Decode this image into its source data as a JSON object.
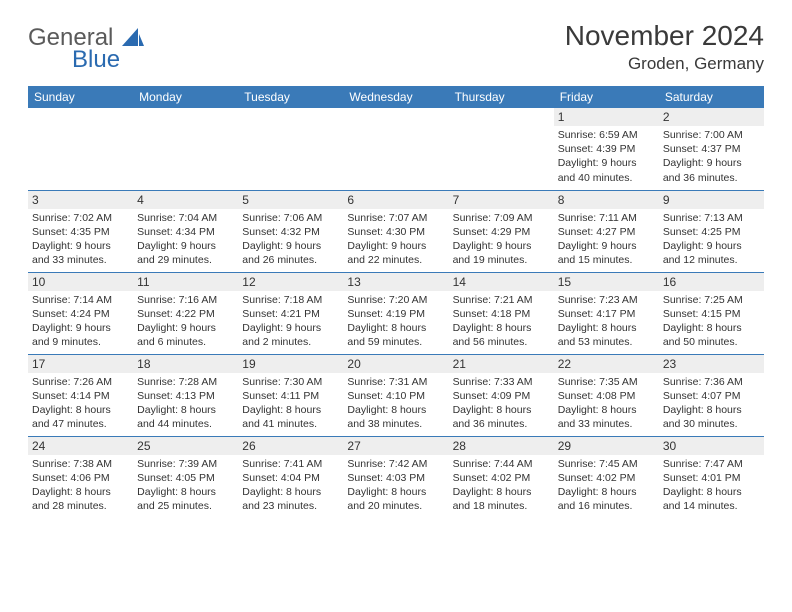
{
  "brand": {
    "part1": "General",
    "part2": "Blue"
  },
  "title": "November 2024",
  "location": "Groden, Germany",
  "colors": {
    "header_bg": "#3a7ab8",
    "header_text": "#ffffff",
    "daybar_bg": "#eeeeee",
    "border": "#3a7ab8",
    "text": "#333333",
    "logo_gray": "#5a5a5a",
    "logo_blue": "#2a6ab0",
    "background": "#ffffff"
  },
  "weekdays": [
    "Sunday",
    "Monday",
    "Tuesday",
    "Wednesday",
    "Thursday",
    "Friday",
    "Saturday"
  ],
  "weeks": [
    [
      null,
      null,
      null,
      null,
      null,
      {
        "n": "1",
        "sr": "Sunrise: 6:59 AM",
        "ss": "Sunset: 4:39 PM",
        "d1": "Daylight: 9 hours",
        "d2": "and 40 minutes."
      },
      {
        "n": "2",
        "sr": "Sunrise: 7:00 AM",
        "ss": "Sunset: 4:37 PM",
        "d1": "Daylight: 9 hours",
        "d2": "and 36 minutes."
      }
    ],
    [
      {
        "n": "3",
        "sr": "Sunrise: 7:02 AM",
        "ss": "Sunset: 4:35 PM",
        "d1": "Daylight: 9 hours",
        "d2": "and 33 minutes."
      },
      {
        "n": "4",
        "sr": "Sunrise: 7:04 AM",
        "ss": "Sunset: 4:34 PM",
        "d1": "Daylight: 9 hours",
        "d2": "and 29 minutes."
      },
      {
        "n": "5",
        "sr": "Sunrise: 7:06 AM",
        "ss": "Sunset: 4:32 PM",
        "d1": "Daylight: 9 hours",
        "d2": "and 26 minutes."
      },
      {
        "n": "6",
        "sr": "Sunrise: 7:07 AM",
        "ss": "Sunset: 4:30 PM",
        "d1": "Daylight: 9 hours",
        "d2": "and 22 minutes."
      },
      {
        "n": "7",
        "sr": "Sunrise: 7:09 AM",
        "ss": "Sunset: 4:29 PM",
        "d1": "Daylight: 9 hours",
        "d2": "and 19 minutes."
      },
      {
        "n": "8",
        "sr": "Sunrise: 7:11 AM",
        "ss": "Sunset: 4:27 PM",
        "d1": "Daylight: 9 hours",
        "d2": "and 15 minutes."
      },
      {
        "n": "9",
        "sr": "Sunrise: 7:13 AM",
        "ss": "Sunset: 4:25 PM",
        "d1": "Daylight: 9 hours",
        "d2": "and 12 minutes."
      }
    ],
    [
      {
        "n": "10",
        "sr": "Sunrise: 7:14 AM",
        "ss": "Sunset: 4:24 PM",
        "d1": "Daylight: 9 hours",
        "d2": "and 9 minutes."
      },
      {
        "n": "11",
        "sr": "Sunrise: 7:16 AM",
        "ss": "Sunset: 4:22 PM",
        "d1": "Daylight: 9 hours",
        "d2": "and 6 minutes."
      },
      {
        "n": "12",
        "sr": "Sunrise: 7:18 AM",
        "ss": "Sunset: 4:21 PM",
        "d1": "Daylight: 9 hours",
        "d2": "and 2 minutes."
      },
      {
        "n": "13",
        "sr": "Sunrise: 7:20 AM",
        "ss": "Sunset: 4:19 PM",
        "d1": "Daylight: 8 hours",
        "d2": "and 59 minutes."
      },
      {
        "n": "14",
        "sr": "Sunrise: 7:21 AM",
        "ss": "Sunset: 4:18 PM",
        "d1": "Daylight: 8 hours",
        "d2": "and 56 minutes."
      },
      {
        "n": "15",
        "sr": "Sunrise: 7:23 AM",
        "ss": "Sunset: 4:17 PM",
        "d1": "Daylight: 8 hours",
        "d2": "and 53 minutes."
      },
      {
        "n": "16",
        "sr": "Sunrise: 7:25 AM",
        "ss": "Sunset: 4:15 PM",
        "d1": "Daylight: 8 hours",
        "d2": "and 50 minutes."
      }
    ],
    [
      {
        "n": "17",
        "sr": "Sunrise: 7:26 AM",
        "ss": "Sunset: 4:14 PM",
        "d1": "Daylight: 8 hours",
        "d2": "and 47 minutes."
      },
      {
        "n": "18",
        "sr": "Sunrise: 7:28 AM",
        "ss": "Sunset: 4:13 PM",
        "d1": "Daylight: 8 hours",
        "d2": "and 44 minutes."
      },
      {
        "n": "19",
        "sr": "Sunrise: 7:30 AM",
        "ss": "Sunset: 4:11 PM",
        "d1": "Daylight: 8 hours",
        "d2": "and 41 minutes."
      },
      {
        "n": "20",
        "sr": "Sunrise: 7:31 AM",
        "ss": "Sunset: 4:10 PM",
        "d1": "Daylight: 8 hours",
        "d2": "and 38 minutes."
      },
      {
        "n": "21",
        "sr": "Sunrise: 7:33 AM",
        "ss": "Sunset: 4:09 PM",
        "d1": "Daylight: 8 hours",
        "d2": "and 36 minutes."
      },
      {
        "n": "22",
        "sr": "Sunrise: 7:35 AM",
        "ss": "Sunset: 4:08 PM",
        "d1": "Daylight: 8 hours",
        "d2": "and 33 minutes."
      },
      {
        "n": "23",
        "sr": "Sunrise: 7:36 AM",
        "ss": "Sunset: 4:07 PM",
        "d1": "Daylight: 8 hours",
        "d2": "and 30 minutes."
      }
    ],
    [
      {
        "n": "24",
        "sr": "Sunrise: 7:38 AM",
        "ss": "Sunset: 4:06 PM",
        "d1": "Daylight: 8 hours",
        "d2": "and 28 minutes."
      },
      {
        "n": "25",
        "sr": "Sunrise: 7:39 AM",
        "ss": "Sunset: 4:05 PM",
        "d1": "Daylight: 8 hours",
        "d2": "and 25 minutes."
      },
      {
        "n": "26",
        "sr": "Sunrise: 7:41 AM",
        "ss": "Sunset: 4:04 PM",
        "d1": "Daylight: 8 hours",
        "d2": "and 23 minutes."
      },
      {
        "n": "27",
        "sr": "Sunrise: 7:42 AM",
        "ss": "Sunset: 4:03 PM",
        "d1": "Daylight: 8 hours",
        "d2": "and 20 minutes."
      },
      {
        "n": "28",
        "sr": "Sunrise: 7:44 AM",
        "ss": "Sunset: 4:02 PM",
        "d1": "Daylight: 8 hours",
        "d2": "and 18 minutes."
      },
      {
        "n": "29",
        "sr": "Sunrise: 7:45 AM",
        "ss": "Sunset: 4:02 PM",
        "d1": "Daylight: 8 hours",
        "d2": "and 16 minutes."
      },
      {
        "n": "30",
        "sr": "Sunrise: 7:47 AM",
        "ss": "Sunset: 4:01 PM",
        "d1": "Daylight: 8 hours",
        "d2": "and 14 minutes."
      }
    ]
  ]
}
